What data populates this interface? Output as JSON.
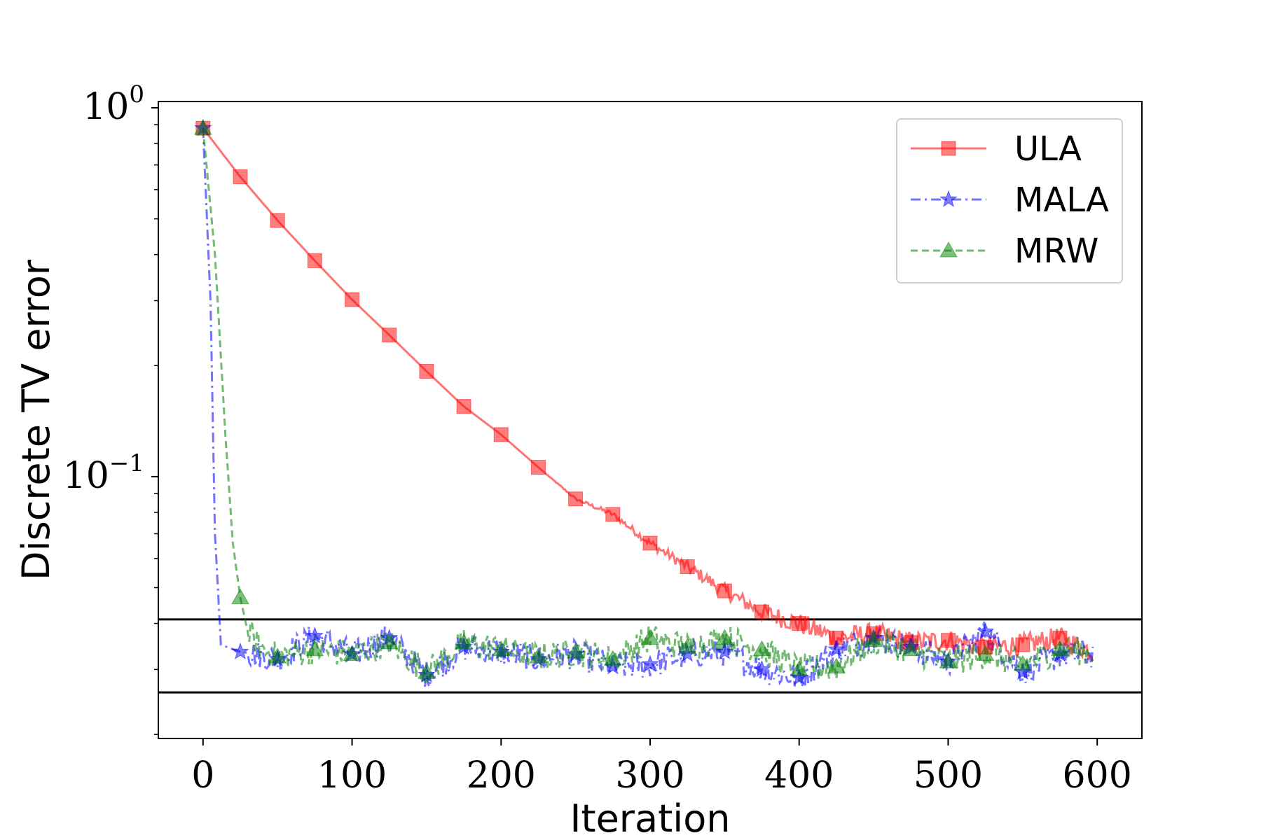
{
  "chart_data": {
    "type": "line",
    "xlabel": "Iteration",
    "ylabel": "Discrete TV error",
    "xlim": [
      -30,
      630
    ],
    "ylim": [
      0.0195,
      1.04
    ],
    "yscale": "log",
    "grid": false,
    "legend_position": "top-right",
    "x_ticks": [
      0,
      100,
      200,
      300,
      400,
      500,
      600
    ],
    "y_ticks": [
      {
        "value": 1,
        "base": "10",
        "exp": "0"
      },
      {
        "value": 0.1,
        "base": "10",
        "exp": "−1"
      }
    ],
    "reference_lines": [
      0.041,
      0.026
    ],
    "series": [
      {
        "name": "ULA",
        "color": "#ff0000",
        "linestyle": "solid",
        "marker": "square",
        "x": [
          0,
          25,
          50,
          75,
          100,
          125,
          150,
          175,
          200,
          225,
          250,
          275,
          300,
          325,
          350,
          375,
          400,
          425,
          450,
          475,
          500,
          525,
          550,
          575,
          597
        ],
        "y": [
          0.88,
          0.65,
          0.495,
          0.385,
          0.302,
          0.242,
          0.193,
          0.155,
          0.13,
          0.106,
          0.087,
          0.079,
          0.066,
          0.057,
          0.049,
          0.043,
          0.04,
          0.0365,
          0.0375,
          0.0355,
          0.036,
          0.0345,
          0.035,
          0.0365,
          0.0335
        ]
      },
      {
        "name": "MALA",
        "color": "#0000ff",
        "linestyle": "dashdot",
        "marker": "star",
        "x": [
          0,
          5,
          8,
          12,
          25,
          50,
          75,
          100,
          125,
          150,
          175,
          200,
          225,
          250,
          275,
          300,
          325,
          350,
          375,
          400,
          425,
          450,
          475,
          500,
          525,
          550,
          575,
          597
        ],
        "y": [
          0.88,
          0.3,
          0.07,
          0.035,
          0.0335,
          0.032,
          0.037,
          0.033,
          0.0365,
          0.029,
          0.0345,
          0.0335,
          0.032,
          0.033,
          0.0305,
          0.031,
          0.033,
          0.0335,
          0.03,
          0.0285,
          0.034,
          0.0365,
          0.0345,
          0.0315,
          0.038,
          0.0295,
          0.033,
          0.033
        ]
      },
      {
        "name": "MRW",
        "color": "#008000",
        "linestyle": "dashed",
        "marker": "triangle",
        "x": [
          0,
          8,
          15,
          20,
          25,
          30,
          40,
          50,
          75,
          100,
          125,
          150,
          175,
          200,
          225,
          250,
          275,
          300,
          325,
          350,
          375,
          400,
          425,
          450,
          475,
          500,
          525,
          550,
          575,
          597
        ],
        "y": [
          0.88,
          0.4,
          0.13,
          0.066,
          0.047,
          0.038,
          0.034,
          0.0325,
          0.034,
          0.033,
          0.0355,
          0.0295,
          0.0355,
          0.034,
          0.0325,
          0.0335,
          0.032,
          0.0365,
          0.0345,
          0.0365,
          0.034,
          0.03,
          0.0305,
          0.036,
          0.034,
          0.0315,
          0.033,
          0.031,
          0.034,
          0.0335
        ]
      }
    ]
  }
}
